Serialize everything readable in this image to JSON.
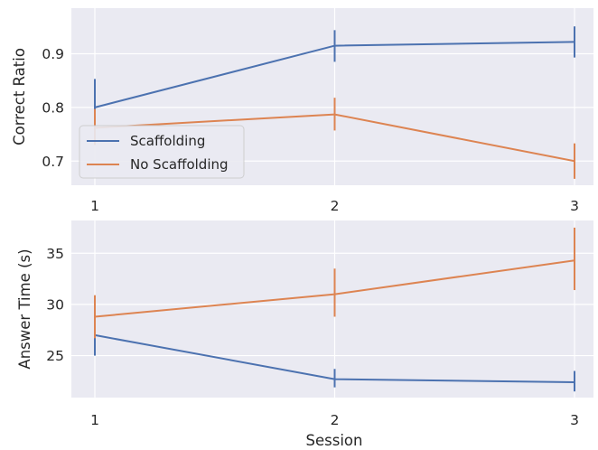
{
  "chart_data": [
    {
      "type": "line",
      "x": [
        1,
        2,
        3
      ],
      "xticks": [
        "1",
        "2",
        "3"
      ],
      "xlabel": "",
      "ylabel": "Correct Ratio",
      "ylim": [
        0.655,
        0.985
      ],
      "yticks": [
        "0.7",
        "0.8",
        "0.9"
      ],
      "grid": true,
      "legend_position": "lower-left",
      "series": [
        {
          "name": "Scaffolding",
          "color": "#4c72b0",
          "values": [
            0.8,
            0.915,
            0.922
          ],
          "err_low": [
            0.753,
            0.885,
            0.893
          ],
          "err_high": [
            0.853,
            0.944,
            0.951
          ]
        },
        {
          "name": "No Scaffolding",
          "color": "#dd8452",
          "values": [
            0.762,
            0.787,
            0.7
          ],
          "err_low": [
            0.73,
            0.757,
            0.667
          ],
          "err_high": [
            0.797,
            0.818,
            0.733
          ]
        }
      ]
    },
    {
      "type": "line",
      "x": [
        1,
        2,
        3
      ],
      "xticks": [
        "1",
        "2",
        "3"
      ],
      "xlabel": "Session",
      "ylabel": "Answer Time (s)",
      "ylim": [
        20.9,
        38.2
      ],
      "yticks": [
        "25",
        "30",
        "35"
      ],
      "grid": true,
      "series": [
        {
          "name": "Scaffolding",
          "color": "#4c72b0",
          "values": [
            27.0,
            22.7,
            22.4
          ],
          "err_low": [
            25.0,
            21.9,
            21.5
          ],
          "err_high": [
            28.8,
            23.7,
            23.5
          ]
        },
        {
          "name": "No Scaffolding",
          "color": "#dd8452",
          "values": [
            28.8,
            31.0,
            34.3
          ],
          "err_low": [
            26.7,
            28.8,
            31.4
          ],
          "err_high": [
            30.9,
            33.5,
            37.5
          ]
        }
      ]
    }
  ]
}
